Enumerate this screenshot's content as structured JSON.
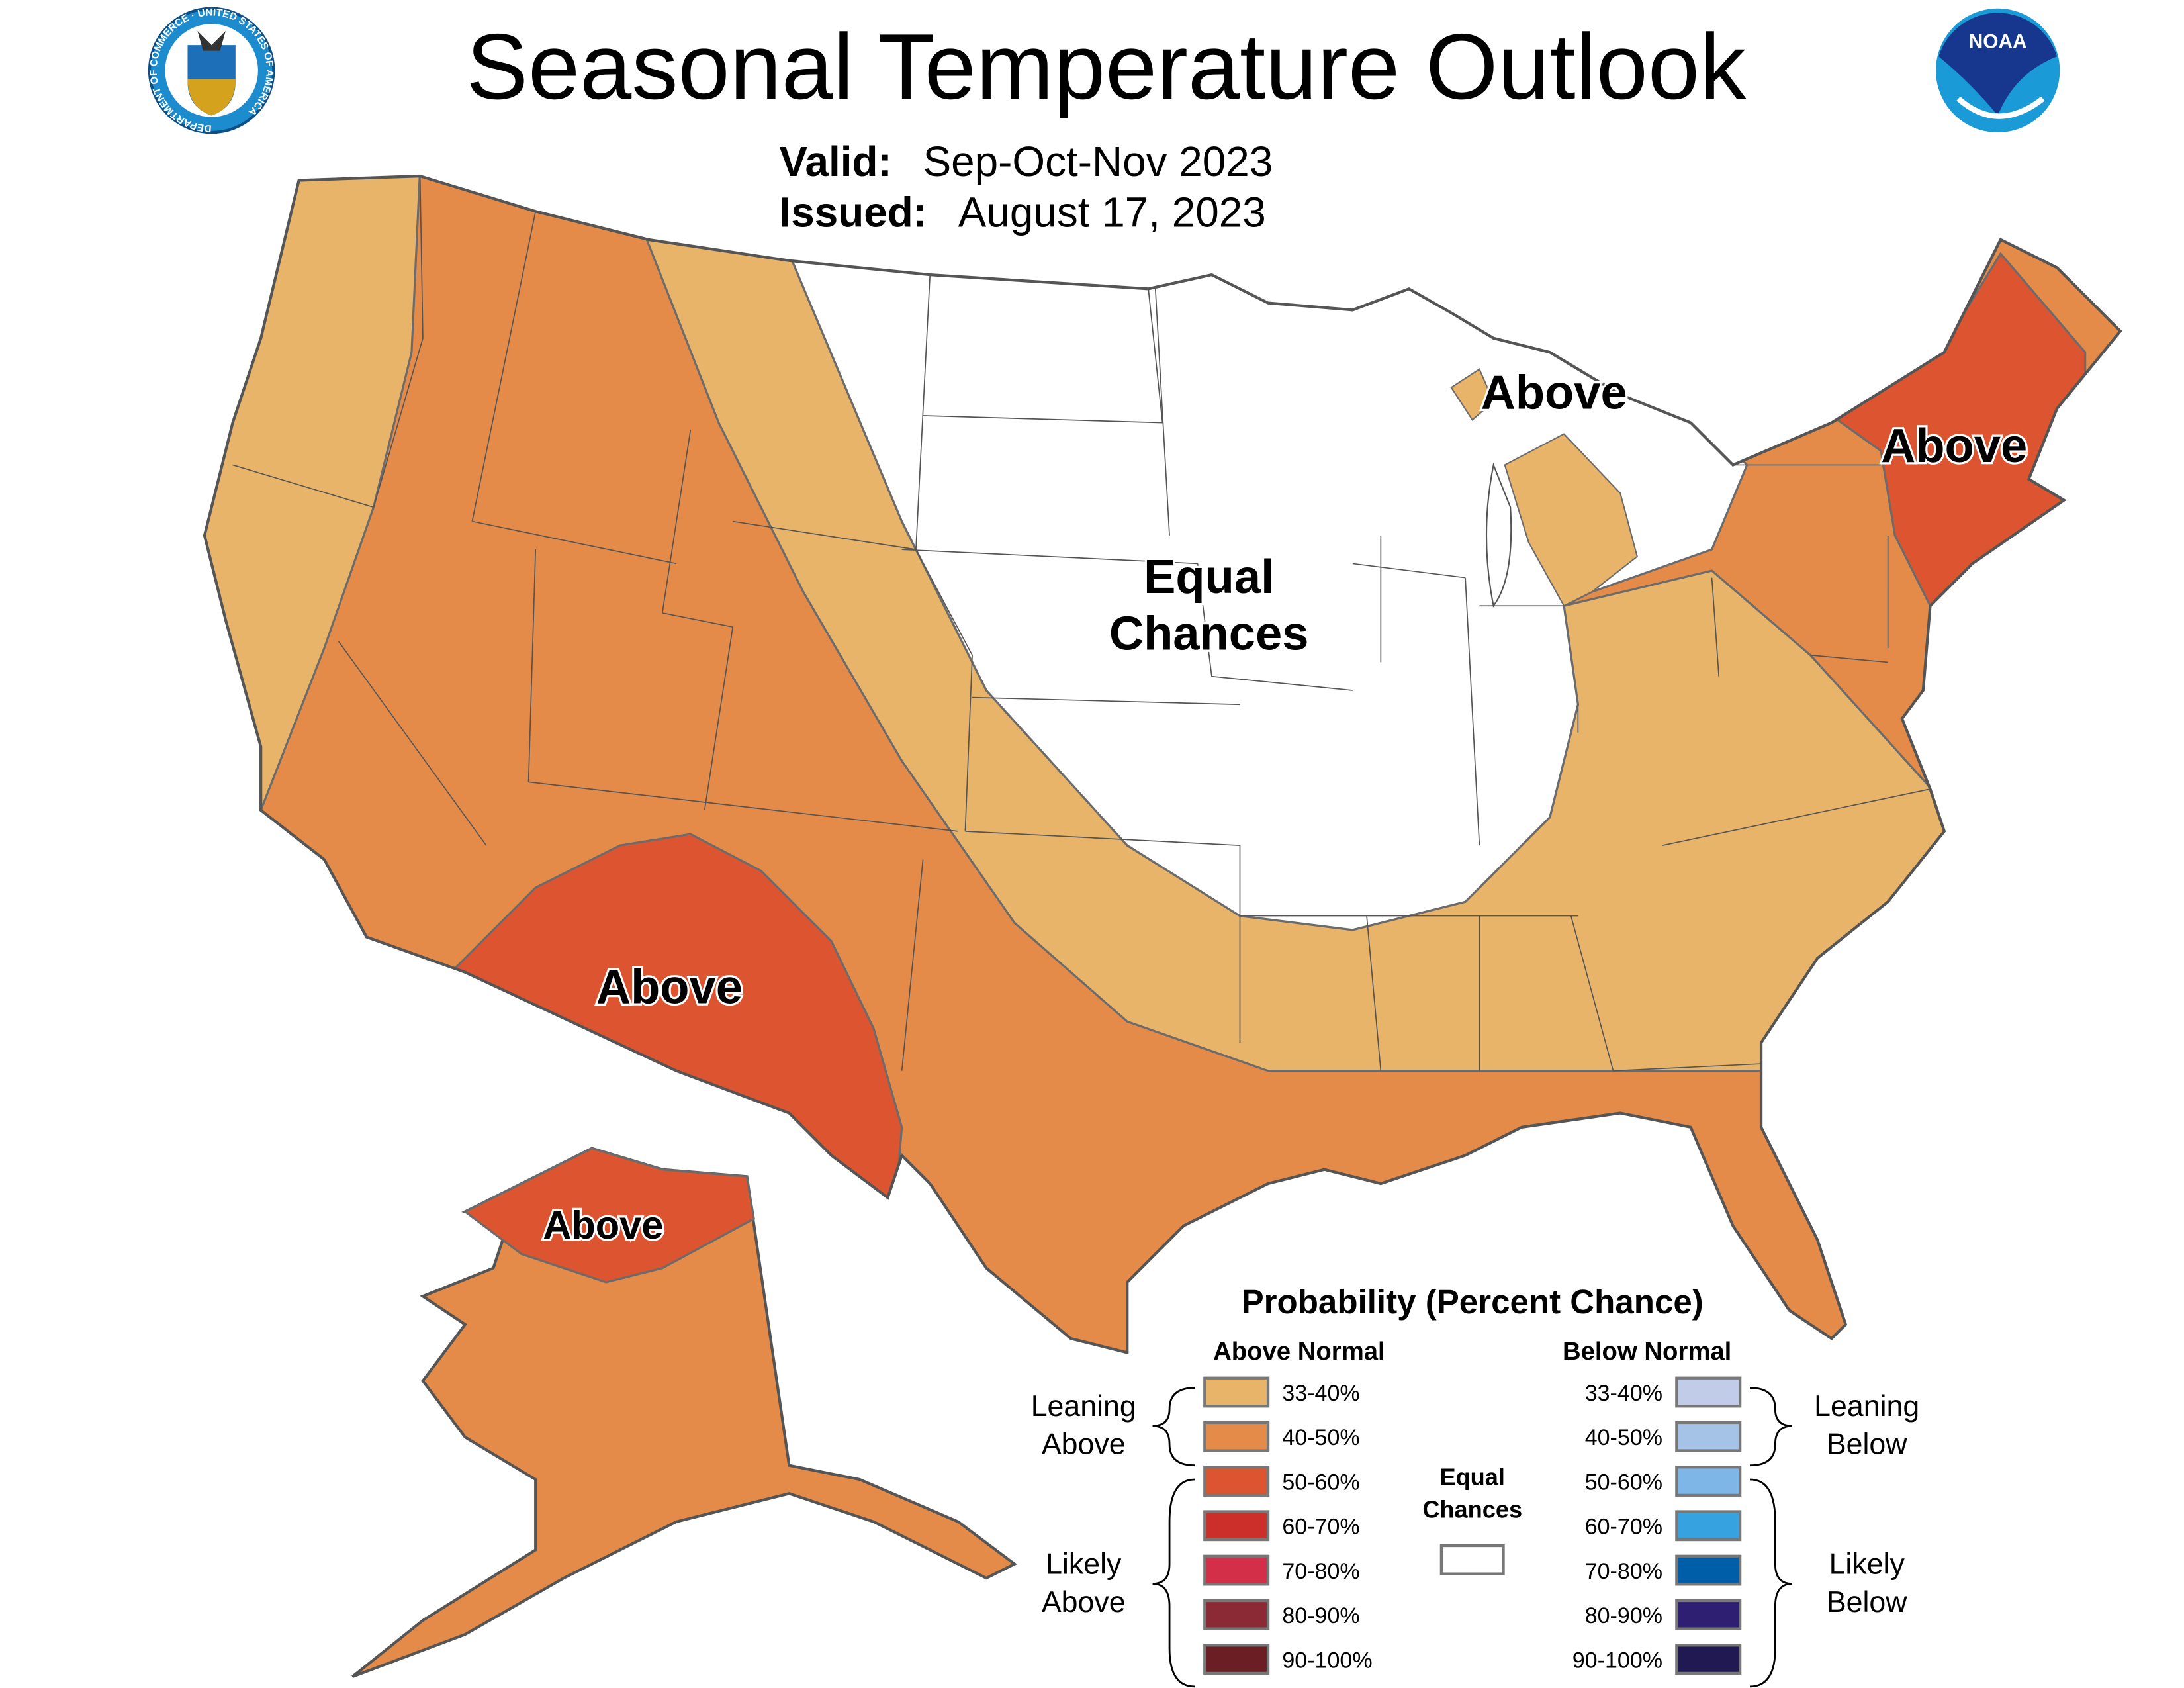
{
  "header": {
    "title": "Seasonal Temperature Outlook",
    "valid_label": "Valid:",
    "valid_value": "Sep-Oct-Nov 2023",
    "issued_label": "Issued:",
    "issued_value": "August 17, 2023",
    "left_logo": "department-of-commerce-seal",
    "left_logo_text": "DEPARTMENT OF COMMERCE · UNITED STATES OF AMERICA",
    "right_logo": "noaa-logo",
    "right_logo_text": "NOAA"
  },
  "map": {
    "labels": {
      "southwest": "Above",
      "great_lakes": "Above",
      "northeast": "Above",
      "alaska": "Above",
      "equal_1": "Equal",
      "equal_2": "Chances"
    }
  },
  "legend": {
    "title": "Probability (Percent Chance)",
    "above_header": "Above Normal",
    "below_header": "Below Normal",
    "leaning_above": [
      "Leaning",
      "Above"
    ],
    "likely_above": [
      "Likely",
      "Above"
    ],
    "leaning_below": [
      "Leaning",
      "Below"
    ],
    "likely_below": [
      "Likely",
      "Below"
    ],
    "equal_chances": [
      "Equal",
      "Chances"
    ],
    "equal_color": "#ffffff",
    "above": [
      {
        "range": "33-40%",
        "color": "#e8b46a"
      },
      {
        "range": "40-50%",
        "color": "#e48b4a"
      },
      {
        "range": "50-60%",
        "color": "#dc5530"
      },
      {
        "range": "60-70%",
        "color": "#cc2f2a"
      },
      {
        "range": "70-80%",
        "color": "#d42f48"
      },
      {
        "range": "80-90%",
        "color": "#8b2a35"
      },
      {
        "range": "90-100%",
        "color": "#6b1f24"
      }
    ],
    "below": [
      {
        "range": "33-40%",
        "color": "#c0cce8"
      },
      {
        "range": "40-50%",
        "color": "#a4c3e6"
      },
      {
        "range": "50-60%",
        "color": "#7fb6e8"
      },
      {
        "range": "60-70%",
        "color": "#36a3e0"
      },
      {
        "range": "70-80%",
        "color": "#005ea8"
      },
      {
        "range": "80-90%",
        "color": "#2e1f72"
      },
      {
        "range": "90-100%",
        "color": "#211a52"
      }
    ]
  }
}
